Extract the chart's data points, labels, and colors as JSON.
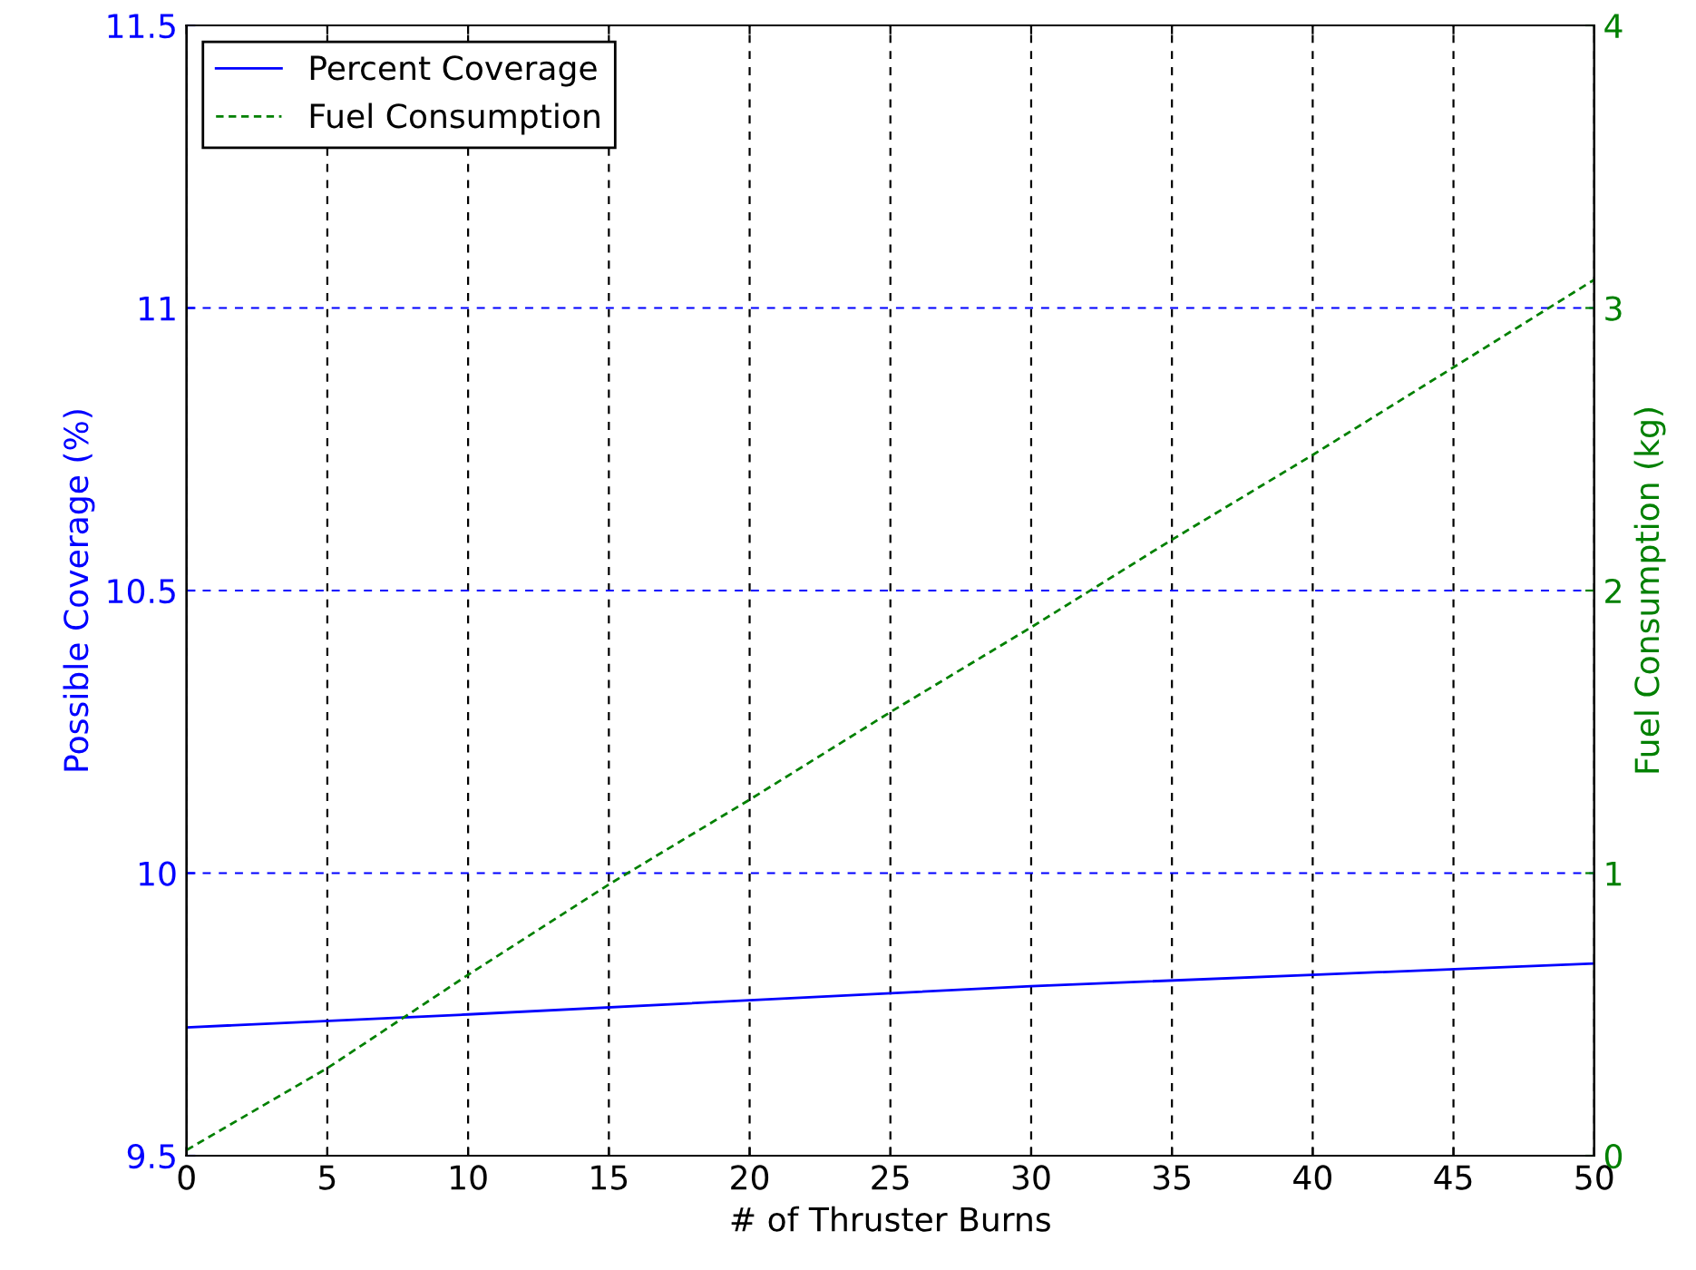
{
  "chart_data": {
    "type": "line",
    "xlabel": "# of Thruster Burns",
    "ylabel": "Possible Coverage (%)",
    "y2label": "Fuel Consumption (kg)",
    "xlim": [
      0,
      50
    ],
    "xticks": [
      0,
      5,
      10,
      15,
      20,
      25,
      30,
      35,
      40,
      45,
      50
    ],
    "ylim": [
      9.5,
      11.5
    ],
    "yticks": [
      9.5,
      10,
      10.5,
      11,
      11.5
    ],
    "y2lim": [
      0,
      4
    ],
    "y2ticks": [
      0,
      1,
      2,
      3,
      4
    ],
    "grid": true,
    "legend": "top left",
    "series": [
      {
        "name": "Percent Coverage",
        "color": "#0000ff",
        "line_style": "solid",
        "x": [
          0,
          10,
          20,
          30,
          40,
          50
        ],
        "values": [
          9.727,
          9.75,
          9.775,
          9.8,
          9.82,
          9.84
        ]
      },
      {
        "name": "Fuel Consumption",
        "color": "#008000",
        "line_style": "dashed",
        "axis": "y2",
        "x": [
          0,
          5,
          10,
          15,
          20,
          25,
          30,
          35,
          40,
          45,
          50
        ],
        "values": [
          0.02,
          0.31,
          0.64,
          0.96,
          1.26,
          1.57,
          1.87,
          2.18,
          2.48,
          2.79,
          3.1
        ]
      }
    ]
  }
}
